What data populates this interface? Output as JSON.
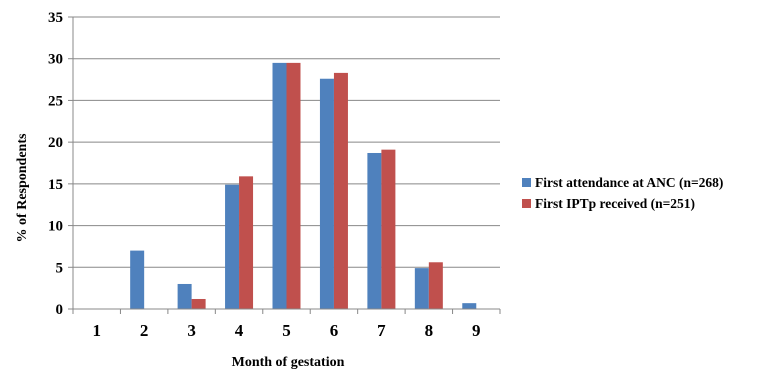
{
  "chart_data": {
    "type": "bar",
    "title": "",
    "xlabel": "Month of gestation",
    "ylabel": "% of Respondents",
    "categories": [
      "1",
      "2",
      "3",
      "4",
      "5",
      "6",
      "7",
      "8",
      "9"
    ],
    "ylim": [
      0,
      35
    ],
    "yticks": [
      "0",
      "5",
      "10",
      "15",
      "20",
      "25",
      "30",
      "35"
    ],
    "grid": true,
    "legend_position": "right",
    "series": [
      {
        "name": "First attendance at ANC (n=268)",
        "color": "#4F81BD",
        "values": [
          0,
          7.0,
          3.0,
          14.9,
          29.5,
          27.6,
          18.7,
          4.9,
          0.7
        ]
      },
      {
        "name": "First IPTp received (n=251)",
        "color": "#C0504D",
        "values": [
          0,
          0,
          1.2,
          15.9,
          29.5,
          28.3,
          19.1,
          5.6,
          0
        ]
      }
    ]
  }
}
